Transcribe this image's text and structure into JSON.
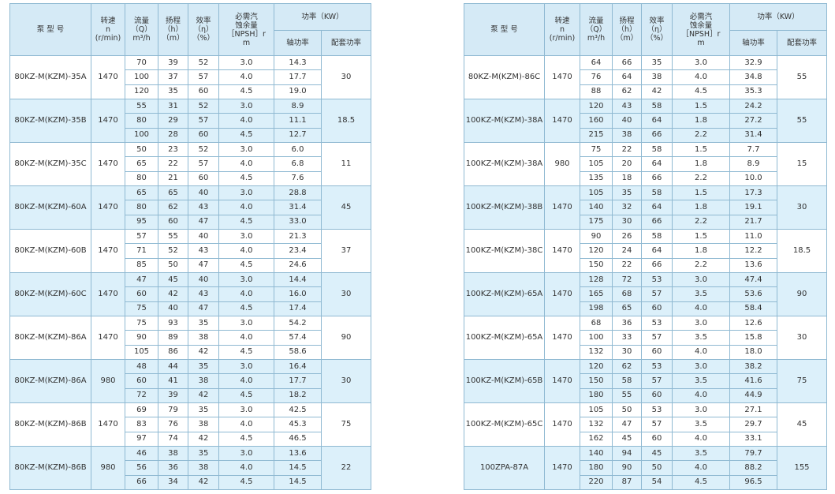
{
  "header": {
    "model": "泵  型  号",
    "speed": "转速\nn\n(r/min)",
    "flow": "流量\n（Q）\nm³/h",
    "head": "扬程\n（h）\n（m）",
    "eff": "效率\n（η）\n（%）",
    "npsh": "必需汽\n蚀余量\n［NPSH］r\nm",
    "power": "功率（KW）",
    "shaft": "轴功率",
    "match": "配套功率"
  },
  "left": [
    {
      "model": "80KZ-M(KZM)-35A",
      "speed": "1470",
      "power": "30",
      "rows": [
        [
          "70",
          "39",
          "52",
          "3.0",
          "14.3"
        ],
        [
          "100",
          "37",
          "57",
          "4.0",
          "17.7"
        ],
        [
          "120",
          "35",
          "60",
          "4.5",
          "19.0"
        ]
      ]
    },
    {
      "model": "80KZ-M(KZM)-35B",
      "speed": "1470",
      "power": "18.5",
      "rows": [
        [
          "55",
          "31",
          "52",
          "3.0",
          "8.9"
        ],
        [
          "80",
          "29",
          "57",
          "4.0",
          "11.1"
        ],
        [
          "100",
          "28",
          "60",
          "4.5",
          "12.7"
        ]
      ]
    },
    {
      "model": "80KZ-M(KZM)-35C",
      "speed": "1470",
      "power": "11",
      "rows": [
        [
          "50",
          "23",
          "52",
          "3.0",
          "6.0"
        ],
        [
          "65",
          "22",
          "57",
          "4.0",
          "6.8"
        ],
        [
          "80",
          "21",
          "60",
          "4.5",
          "7.6"
        ]
      ]
    },
    {
      "model": "80KZ-M(KZM)-60A",
      "speed": "1470",
      "power": "45",
      "rows": [
        [
          "65",
          "65",
          "40",
          "3.0",
          "28.8"
        ],
        [
          "80",
          "62",
          "43",
          "4.0",
          "31.4"
        ],
        [
          "95",
          "60",
          "47",
          "4.5",
          "33.0"
        ]
      ]
    },
    {
      "model": "80KZ-M(KZM)-60B",
      "speed": "1470",
      "power": "37",
      "rows": [
        [
          "57",
          "55",
          "40",
          "3.0",
          "21.3"
        ],
        [
          "71",
          "52",
          "43",
          "4.0",
          "23.4"
        ],
        [
          "85",
          "50",
          "47",
          "4.5",
          "24.6"
        ]
      ]
    },
    {
      "model": "80KZ-M(KZM)-60C",
      "speed": "1470",
      "power": "30",
      "rows": [
        [
          "47",
          "45",
          "40",
          "3.0",
          "14.4"
        ],
        [
          "60",
          "42",
          "43",
          "4.0",
          "16.0"
        ],
        [
          "75",
          "40",
          "47",
          "4.5",
          "17.4"
        ]
      ]
    },
    {
      "model": "80KZ-M(KZM)-86A",
      "speed": "1470",
      "power": "90",
      "rows": [
        [
          "75",
          "93",
          "35",
          "3.0",
          "54.2"
        ],
        [
          "90",
          "89",
          "38",
          "4.0",
          "57.4"
        ],
        [
          "105",
          "86",
          "42",
          "4.5",
          "58.6"
        ]
      ]
    },
    {
      "model": "80KZ-M(KZM)-86A",
      "speed": "980",
      "power": "30",
      "rows": [
        [
          "48",
          "44",
          "35",
          "3.0",
          "16.4"
        ],
        [
          "60",
          "41",
          "38",
          "4.0",
          "17.7"
        ],
        [
          "72",
          "39",
          "42",
          "4.5",
          "18.2"
        ]
      ]
    },
    {
      "model": "80KZ-M(KZM)-86B",
      "speed": "1470",
      "power": "75",
      "rows": [
        [
          "69",
          "79",
          "35",
          "3.0",
          "42.5"
        ],
        [
          "83",
          "76",
          "38",
          "4.0",
          "45.3"
        ],
        [
          "97",
          "74",
          "42",
          "4.5",
          "46.5"
        ]
      ]
    },
    {
      "model": "80KZ-M(KZM)-86B",
      "speed": "980",
      "power": "22",
      "rows": [
        [
          "46",
          "38",
          "35",
          "3.0",
          "13.6"
        ],
        [
          "56",
          "36",
          "38",
          "4.0",
          "14.5"
        ],
        [
          "66",
          "34",
          "42",
          "4.5",
          "14.5"
        ]
      ]
    }
  ],
  "right": [
    {
      "model": "80KZ-M(KZM)-86C",
      "speed": "1470",
      "power": "55",
      "rows": [
        [
          "64",
          "66",
          "35",
          "3.0",
          "32.9"
        ],
        [
          "76",
          "64",
          "38",
          "4.0",
          "34.8"
        ],
        [
          "88",
          "62",
          "42",
          "4.5",
          "35.3"
        ]
      ]
    },
    {
      "model": "100KZ-M(KZM)-38A",
      "speed": "1470",
      "power": "55",
      "rows": [
        [
          "120",
          "43",
          "58",
          "1.5",
          "24.2"
        ],
        [
          "160",
          "40",
          "64",
          "1.8",
          "27.2"
        ],
        [
          "215",
          "38",
          "66",
          "2.2",
          "31.4"
        ]
      ]
    },
    {
      "model": "100KZ-M(KZM)-38A",
      "speed": "980",
      "power": "15",
      "rows": [
        [
          "75",
          "22",
          "58",
          "1.5",
          "7.7"
        ],
        [
          "105",
          "20",
          "64",
          "1.8",
          "8.9"
        ],
        [
          "135",
          "18",
          "66",
          "2.2",
          "10.0"
        ]
      ]
    },
    {
      "model": "100KZ-M(KZM)-38B",
      "speed": "1470",
      "power": "30",
      "rows": [
        [
          "105",
          "35",
          "58",
          "1.5",
          "17.3"
        ],
        [
          "140",
          "32",
          "64",
          "1.8",
          "19.1"
        ],
        [
          "175",
          "30",
          "66",
          "2.2",
          "21.7"
        ]
      ]
    },
    {
      "model": "100KZ-M(KZM)-38C",
      "speed": "1470",
      "power": "18.5",
      "rows": [
        [
          "90",
          "26",
          "58",
          "1.5",
          "11.0"
        ],
        [
          "120",
          "24",
          "64",
          "1.8",
          "12.2"
        ],
        [
          "150",
          "22",
          "66",
          "2.2",
          "13.6"
        ]
      ]
    },
    {
      "model": "100KZ-M(KZM)-65A",
      "speed": "1470",
      "power": "90",
      "rows": [
        [
          "128",
          "72",
          "53",
          "3.0",
          "47.4"
        ],
        [
          "165",
          "68",
          "57",
          "3.5",
          "53.6"
        ],
        [
          "198",
          "65",
          "60",
          "4.0",
          "58.4"
        ]
      ]
    },
    {
      "model": "100KZ-M(KZM)-65A",
      "speed": "1470",
      "power": "30",
      "rows": [
        [
          "68",
          "36",
          "53",
          "3.0",
          "12.6"
        ],
        [
          "100",
          "33",
          "57",
          "3.5",
          "15.8"
        ],
        [
          "132",
          "30",
          "60",
          "4.0",
          "18.0"
        ]
      ]
    },
    {
      "model": "100KZ-M(KZM)-65B",
      "speed": "1470",
      "power": "75",
      "rows": [
        [
          "120",
          "62",
          "53",
          "3.0",
          "38.2"
        ],
        [
          "150",
          "58",
          "57",
          "3.5",
          "41.6"
        ],
        [
          "180",
          "55",
          "60",
          "4.0",
          "44.9"
        ]
      ]
    },
    {
      "model": "100KZ-M(KZM)-65C",
      "speed": "1470",
      "power": "45",
      "rows": [
        [
          "105",
          "50",
          "53",
          "3.0",
          "27.1"
        ],
        [
          "132",
          "47",
          "57",
          "3.5",
          "29.7"
        ],
        [
          "162",
          "45",
          "60",
          "4.0",
          "33.1"
        ]
      ]
    },
    {
      "model": "100ZPA-87A",
      "speed": "1470",
      "power": "155",
      "rows": [
        [
          "140",
          "94",
          "45",
          "3.5",
          "79.7"
        ],
        [
          "180",
          "90",
          "50",
          "4.0",
          "88.2"
        ],
        [
          "220",
          "87",
          "54",
          "4.5",
          "96.5"
        ]
      ]
    }
  ]
}
